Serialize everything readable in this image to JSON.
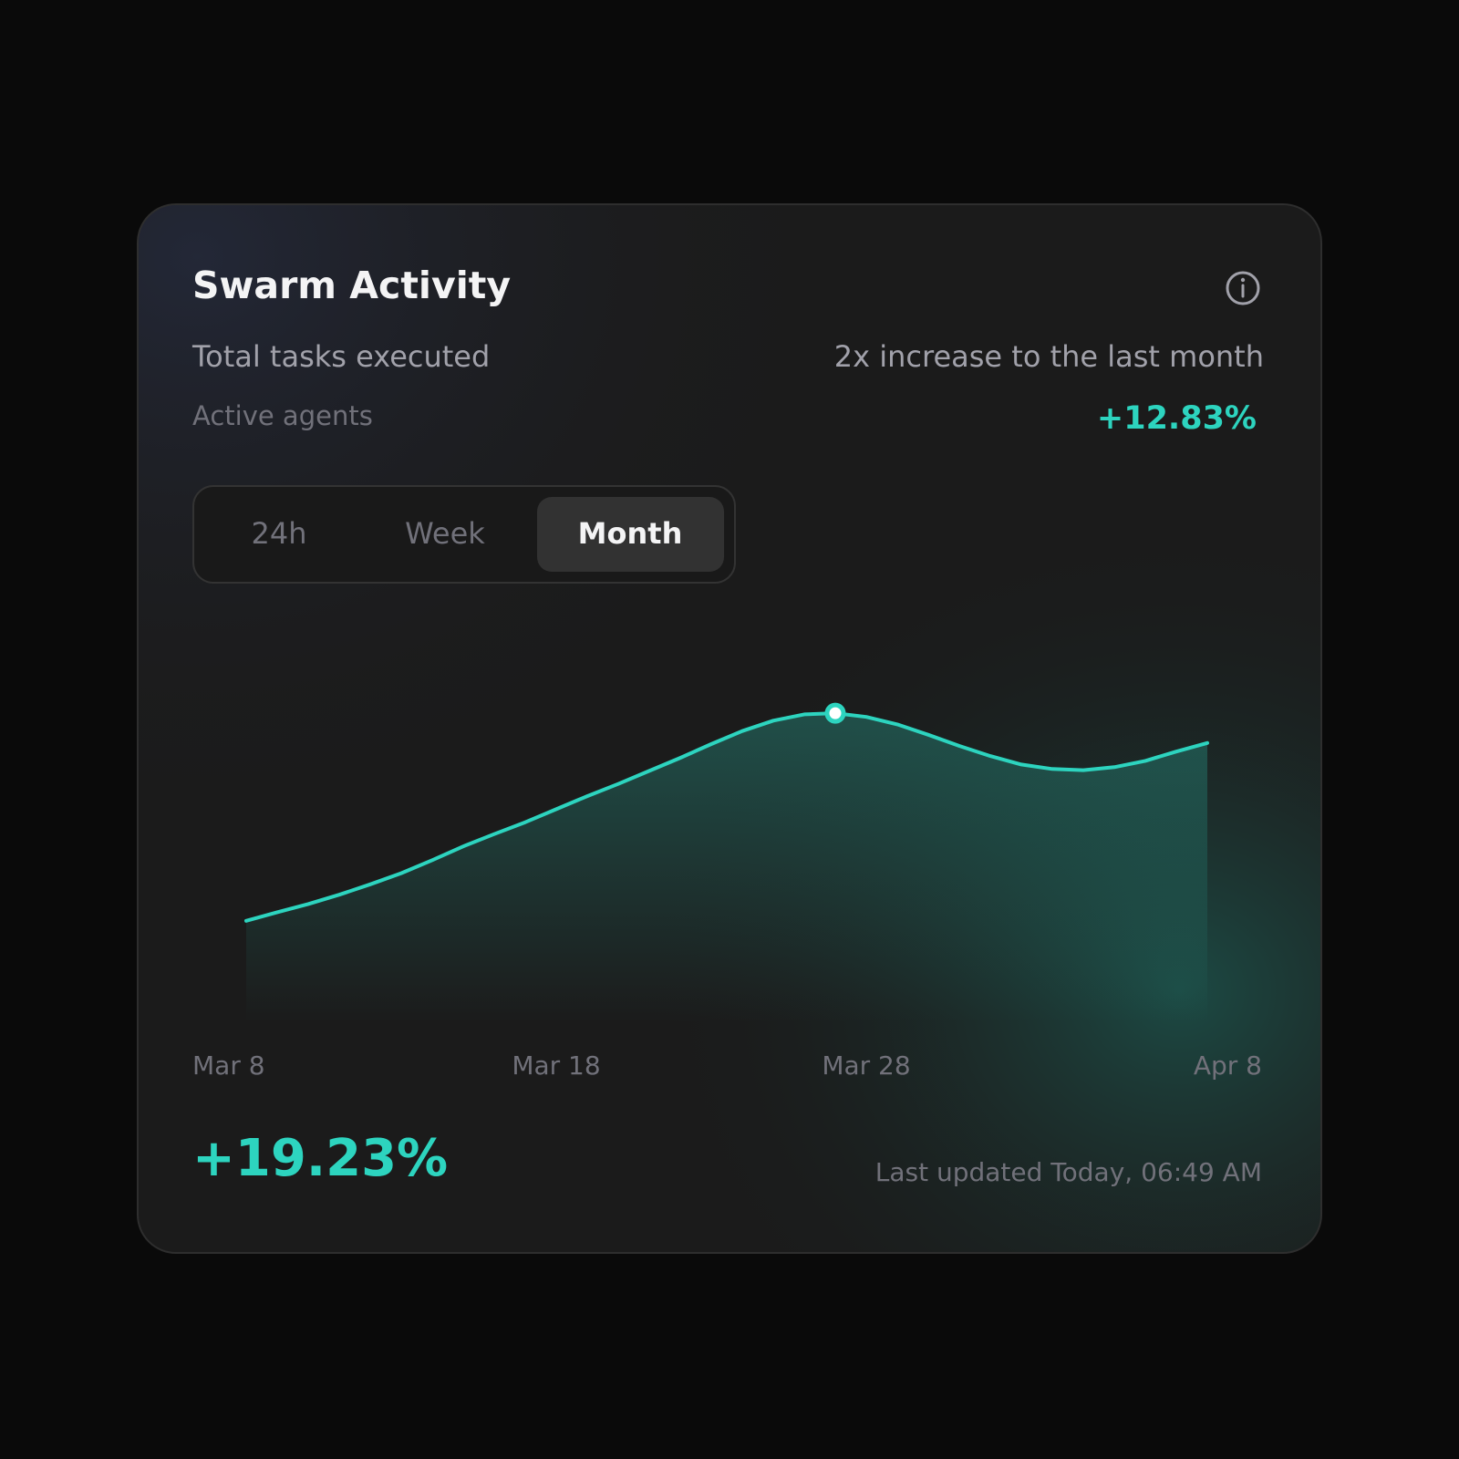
{
  "card": {
    "title": "Swarm Activity",
    "metric_label": "Total tasks executed",
    "comparison": "2x increase to the last month",
    "secondary_label": "Active agents",
    "secondary_change": "+12.83%",
    "tabs": [
      "24h",
      "Week",
      "Month"
    ],
    "active_tab": 2,
    "total_change": "+19.23%",
    "last_updated": "Last updated Today, 06:49 AM"
  },
  "chart_data": {
    "type": "area",
    "categories": [
      "Mar 8",
      null,
      null,
      null,
      null,
      null,
      null,
      null,
      null,
      null,
      "Mar 18",
      null,
      null,
      null,
      null,
      null,
      null,
      null,
      null,
      null,
      "Mar 28",
      null,
      null,
      null,
      null,
      null,
      null,
      null,
      null,
      null,
      null,
      "Apr 8"
    ],
    "values": [
      27.5,
      29.8,
      32,
      34.5,
      37.3,
      40.3,
      43.8,
      47.5,
      50.8,
      54,
      57.5,
      61,
      64.3,
      67.8,
      71.3,
      75,
      78.5,
      81.3,
      83,
      83.3,
      82.3,
      80.3,
      77.5,
      74.5,
      71.8,
      69.5,
      68.3,
      68,
      68.8,
      70.5,
      73,
      75.3
    ],
    "color": "#2dd4bf",
    "ylim": [
      0,
      100
    ],
    "highlight": 19
  }
}
